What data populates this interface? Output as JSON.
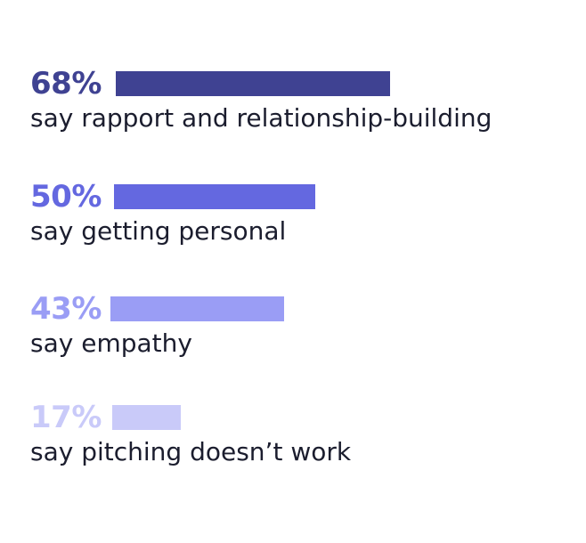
{
  "chart_data": {
    "type": "bar",
    "orientation": "horizontal",
    "xlim": [
      0,
      100
    ],
    "categories": [
      "say rapport and relationship-building",
      "say getting personal",
      "say empathy",
      "say pitching doesn’t work"
    ],
    "values": [
      68,
      50,
      43,
      17
    ],
    "value_labels": [
      "68%",
      "50%",
      "43%",
      "17%"
    ],
    "colors": [
      "#3f4292",
      "#6468e0",
      "#9a9df5",
      "#c9caf9"
    ]
  }
}
